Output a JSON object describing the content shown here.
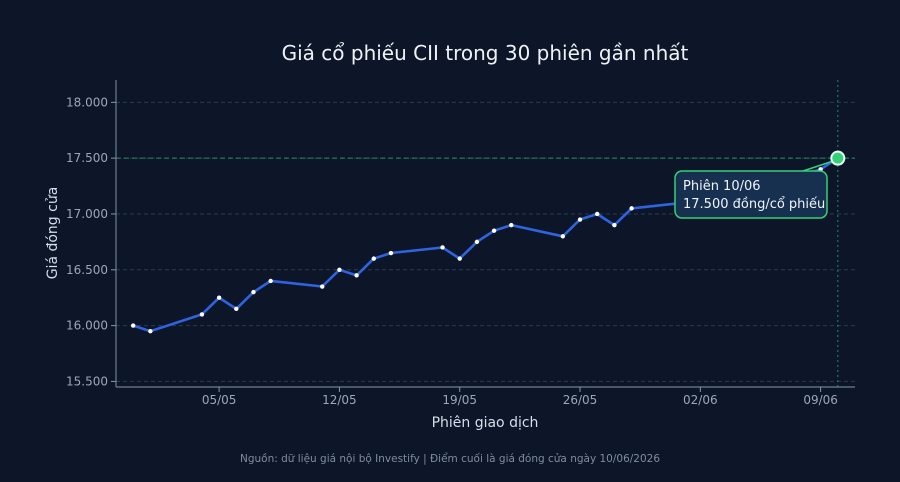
{
  "chart_data": {
    "type": "line",
    "title": "Giá cổ phiếu CII trong 30 phiên gần nhất",
    "xlabel": "Phiên giao dịch",
    "ylabel": "Giá đóng cửa",
    "ylim": [
      15450,
      18200
    ],
    "yticks": [
      15500,
      16000,
      16500,
      17000,
      17500,
      18000
    ],
    "ytick_labels": [
      "15.500",
      "16.000",
      "16.500",
      "17.000",
      "17.500",
      "18.000"
    ],
    "xlim": [
      "2026-04-29",
      "2026-06-11"
    ],
    "xticks": [
      "2026-05-05",
      "2026-05-12",
      "2026-05-19",
      "2026-05-26",
      "2026-06-02",
      "2026-06-09"
    ],
    "xtick_labels": [
      "05/05",
      "12/05",
      "19/05",
      "26/05",
      "02/06",
      "09/06"
    ],
    "grid": true,
    "line_color": "#2f63e0",
    "series": [
      {
        "x": [
          "2026-04-30",
          "2026-05-01",
          "2026-05-04",
          "2026-05-05",
          "2026-05-06",
          "2026-05-07",
          "2026-05-08",
          "2026-05-11",
          "2026-05-12",
          "2026-05-13",
          "2026-05-14",
          "2026-05-15",
          "2026-05-18",
          "2026-05-19",
          "2026-05-20",
          "2026-05-21",
          "2026-05-22",
          "2026-05-25",
          "2026-05-26",
          "2026-05-27",
          "2026-05-28",
          "2026-05-29",
          "2026-06-01",
          "2026-06-02",
          "2026-06-03",
          "2026-06-04",
          "2026-06-05",
          "2026-06-08",
          "2026-06-09",
          "2026-06-10"
        ],
        "values": [
          16000,
          15950,
          16100,
          16250,
          16150,
          16300,
          16400,
          16350,
          16500,
          16450,
          16600,
          16650,
          16700,
          16600,
          16750,
          16850,
          16900,
          16800,
          16950,
          17000,
          16900,
          17050,
          17100,
          17150,
          17200,
          17250,
          17300,
          17350,
          17400,
          17500
        ]
      }
    ],
    "reference_line": {
      "y": 17500,
      "color": "#2a9d68"
    },
    "marker_line": {
      "x": "2026-06-10",
      "color": "#2a9d68"
    },
    "highlight": {
      "x": "2026-06-10",
      "y": 17500,
      "color": "#34d07a"
    },
    "annotation": {
      "line1": "Phiên 10/06",
      "line2": "17.500 đồng/cổ phiếu"
    },
    "source_note": "Nguồn: dữ liệu giá nội bộ Investify | Điểm cuối là giá đóng cửa ngày 10/06/2026"
  }
}
